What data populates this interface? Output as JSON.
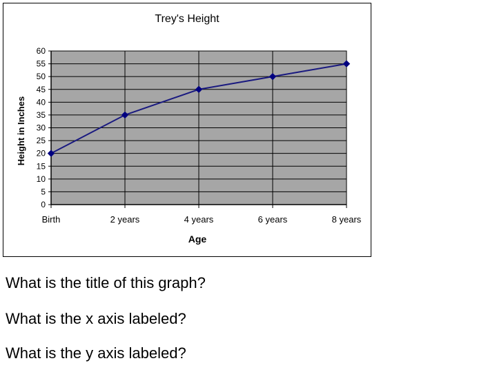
{
  "chart_data": {
    "type": "line",
    "title": "Trey's Height",
    "xlabel": "Age",
    "ylabel": "Height in Inches",
    "categories": [
      "Birth",
      "2 years",
      "4 years",
      "6 years",
      "8 years"
    ],
    "series": [
      {
        "values": [
          20,
          35,
          45,
          50,
          55
        ]
      }
    ],
    "ylim": [
      0,
      60
    ],
    "yticks": [
      0,
      5,
      10,
      15,
      20,
      25,
      30,
      35,
      40,
      45,
      50,
      55,
      60
    ],
    "grid": true,
    "legend": "none",
    "colors": {
      "plot_bg": "#a6a6a6",
      "line": "#1a1a80",
      "marker": "#000080",
      "grid": "#000000"
    }
  },
  "questions": [
    "What is the title of this graph?",
    "What is the x axis labeled?",
    "What is the y axis labeled?"
  ]
}
